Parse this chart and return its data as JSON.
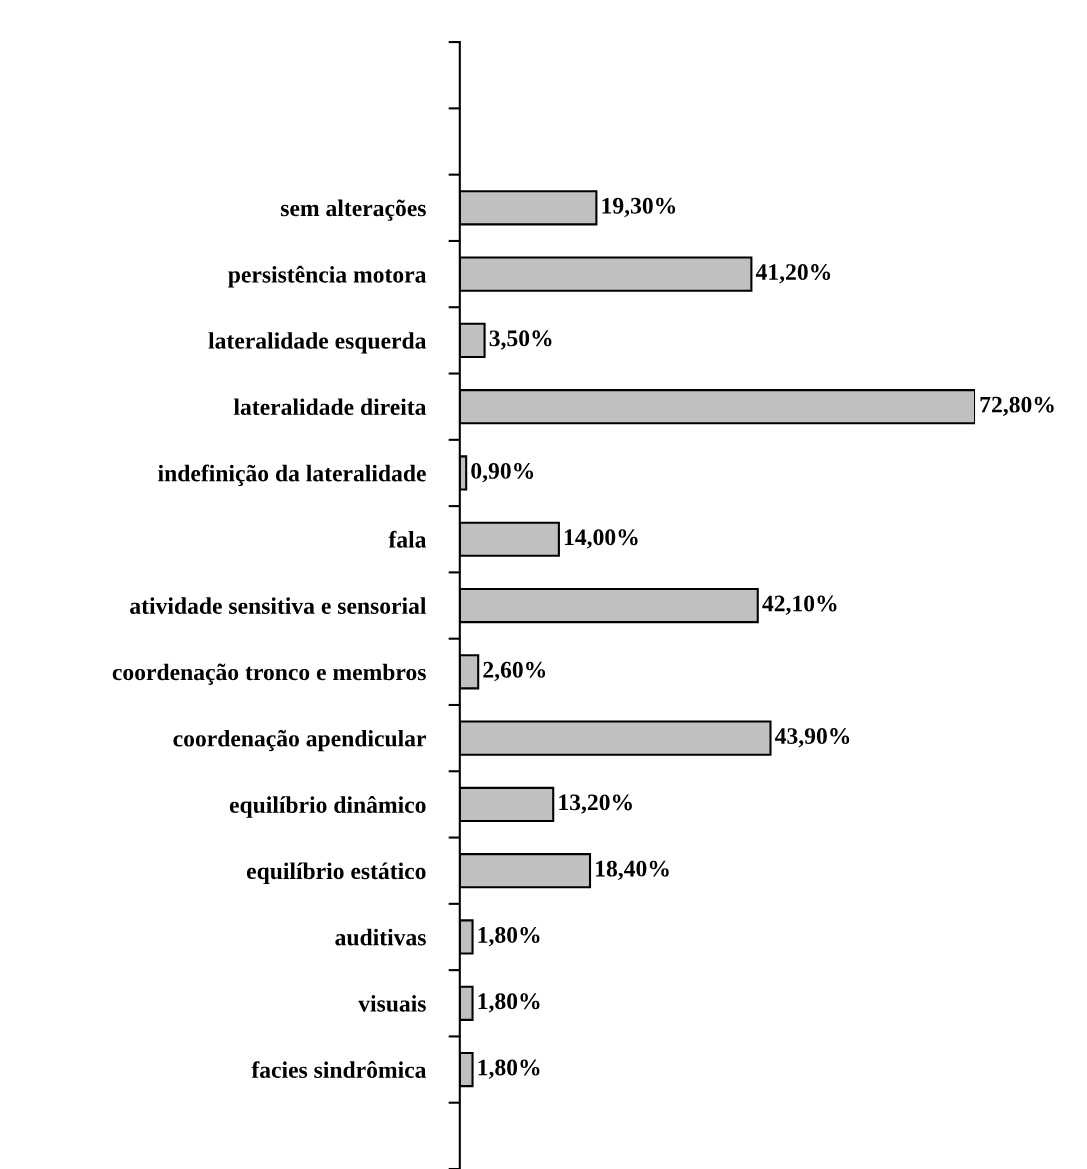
{
  "chart_data": {
    "type": "bar",
    "orientation": "horizontal",
    "color": "#c0c0c0",
    "categories": [
      null,
      null,
      "sem alterações",
      "persistência motora",
      "lateralidade esquerda",
      "lateralidade direita",
      "indefinição da lateralidade",
      "fala",
      "atividade sensitiva e sensorial",
      "coordenação tronco e membros",
      "coordenação apendicular",
      "equilíbrio dinâmico",
      "equilíbrio estático",
      "auditivas",
      "visuais",
      "facies sindrômica",
      null
    ],
    "values": [
      null,
      null,
      19.3,
      41.2,
      3.5,
      72.8,
      0.9,
      14.0,
      42.1,
      2.6,
      43.9,
      13.2,
      18.4,
      1.8,
      1.8,
      1.8,
      null
    ],
    "value_labels": [
      null,
      null,
      "19,30%",
      "41,20%",
      "3,50%",
      "72,80%",
      "0,90%",
      "14,00%",
      "42,10%",
      "2,60%",
      "43,90%",
      "13,20%",
      "18,40%",
      "1,80%",
      "1,80%",
      "1,80%",
      null
    ],
    "grid": false,
    "legend": false
  }
}
